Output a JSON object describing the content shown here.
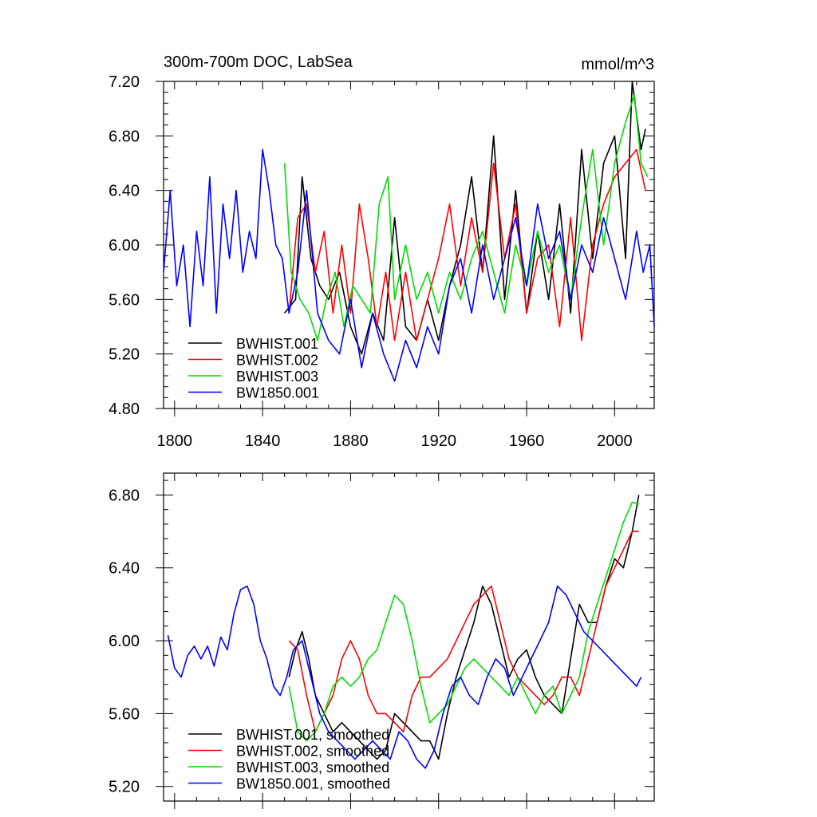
{
  "colors": {
    "BWHIST.001": "#000000",
    "BWHIST.002": "#ff0000",
    "BWHIST.003": "#00dd00",
    "BW1850.001": "#0000ff"
  },
  "chart_data": [
    {
      "type": "line",
      "title": "300m-700m DOC, LabSea",
      "units": "mmol/m^3",
      "xlim": [
        1795,
        2018
      ],
      "ylim": [
        4.8,
        7.2
      ],
      "xticks": [
        1800,
        1840,
        1880,
        1920,
        1960,
        2000
      ],
      "xtick_labels": [
        "1800",
        "1840",
        "1880",
        "1920",
        "1960",
        "2000"
      ],
      "yticks": [
        4.8,
        5.2,
        5.6,
        6.0,
        6.4,
        6.8,
        7.2
      ],
      "ytick_labels": [
        "4.80",
        "5.20",
        "5.60",
        "6.00",
        "6.40",
        "6.80",
        "7.20"
      ],
      "legend_position": "bottom-left",
      "series": [
        {
          "name": "BWHIST.001",
          "color": "#000000",
          "x": [
            1850,
            1855,
            1858,
            1862,
            1866,
            1870,
            1875,
            1880,
            1885,
            1890,
            1895,
            1900,
            1905,
            1910,
            1915,
            1920,
            1925,
            1930,
            1935,
            1940,
            1945,
            1950,
            1955,
            1960,
            1965,
            1970,
            1975,
            1980,
            1985,
            1990,
            1995,
            2000,
            2005,
            2008,
            2012,
            2014
          ],
          "y": [
            5.5,
            5.6,
            6.5,
            5.9,
            5.7,
            5.6,
            5.8,
            5.4,
            5.2,
            5.5,
            5.3,
            6.2,
            5.4,
            5.3,
            5.6,
            5.3,
            5.7,
            6.0,
            6.5,
            5.8,
            6.8,
            5.6,
            6.4,
            5.5,
            6.1,
            5.6,
            6.3,
            5.5,
            6.7,
            5.9,
            6.6,
            6.8,
            5.9,
            7.2,
            6.7,
            6.85
          ]
        },
        {
          "name": "BWHIST.002",
          "color": "#ff0000",
          "x": [
            1852,
            1856,
            1860,
            1864,
            1868,
            1872,
            1876,
            1880,
            1884,
            1888,
            1892,
            1896,
            1900,
            1905,
            1910,
            1915,
            1920,
            1925,
            1930,
            1935,
            1940,
            1945,
            1950,
            1955,
            1960,
            1965,
            1970,
            1975,
            1980,
            1985,
            1990,
            1995,
            2000,
            2005,
            2010,
            2014
          ],
          "y": [
            5.5,
            6.2,
            6.3,
            5.8,
            6.1,
            5.5,
            6.0,
            5.5,
            6.3,
            5.9,
            5.4,
            5.8,
            5.3,
            5.8,
            5.3,
            5.6,
            5.9,
            6.3,
            5.7,
            6.2,
            5.8,
            6.6,
            5.9,
            6.3,
            5.5,
            5.9,
            6.0,
            5.4,
            6.2,
            5.3,
            6.0,
            6.3,
            6.5,
            6.6,
            6.7,
            6.4
          ]
        },
        {
          "name": "BWHIST.003",
          "color": "#00dd00",
          "x": [
            1850,
            1853,
            1857,
            1861,
            1865,
            1869,
            1873,
            1877,
            1881,
            1885,
            1889,
            1893,
            1897,
            1900,
            1905,
            1910,
            1915,
            1920,
            1925,
            1930,
            1935,
            1940,
            1945,
            1950,
            1955,
            1960,
            1965,
            1970,
            1975,
            1980,
            1985,
            1990,
            1995,
            2000,
            2005,
            2009,
            2012,
            2015
          ],
          "y": [
            6.6,
            5.8,
            5.6,
            5.5,
            5.3,
            5.6,
            5.8,
            5.4,
            5.7,
            5.6,
            5.5,
            6.3,
            6.5,
            5.6,
            6.0,
            5.6,
            5.8,
            5.5,
            5.8,
            5.6,
            5.9,
            6.1,
            5.8,
            5.5,
            6.0,
            5.7,
            6.1,
            5.8,
            6.0,
            5.6,
            6.2,
            6.7,
            6.0,
            6.6,
            6.9,
            7.1,
            6.6,
            6.5
          ]
        },
        {
          "name": "BW1850.001",
          "color": "#0000ff",
          "x": [
            1795,
            1798,
            1801,
            1804,
            1807,
            1810,
            1813,
            1816,
            1819,
            1822,
            1825,
            1828,
            1831,
            1834,
            1837,
            1840,
            1843,
            1846,
            1849,
            1852,
            1856,
            1860,
            1865,
            1870,
            1875,
            1880,
            1885,
            1890,
            1895,
            1900,
            1905,
            1910,
            1915,
            1920,
            1925,
            1930,
            1935,
            1940,
            1945,
            1950,
            1955,
            1960,
            1965,
            1970,
            1975,
            1980,
            1985,
            1990,
            1995,
            2000,
            2005,
            2010,
            2013,
            2016,
            2018
          ],
          "y": [
            5.8,
            6.4,
            5.7,
            6.0,
            5.4,
            6.1,
            5.7,
            6.5,
            5.5,
            6.3,
            5.9,
            6.4,
            5.8,
            6.1,
            5.9,
            6.7,
            6.4,
            6.0,
            5.9,
            5.5,
            5.8,
            6.4,
            5.5,
            5.3,
            5.2,
            5.6,
            5.1,
            5.5,
            5.2,
            5.0,
            5.3,
            5.1,
            5.4,
            5.2,
            5.7,
            5.9,
            5.5,
            6.0,
            5.6,
            5.9,
            6.2,
            5.7,
            6.3,
            5.9,
            6.1,
            5.6,
            6.0,
            5.8,
            6.2,
            5.9,
            5.6,
            6.1,
            5.8,
            6.0,
            5.4
          ]
        }
      ]
    },
    {
      "type": "line",
      "title": "",
      "xlim": [
        1795,
        2018
      ],
      "ylim": [
        5.12,
        6.92
      ],
      "xticks": [
        1800,
        1840,
        1880,
        1920,
        1960,
        2000
      ],
      "yticks": [
        5.2,
        5.6,
        6.0,
        6.4,
        6.8
      ],
      "ytick_labels": [
        "5.20",
        "5.60",
        "6.00",
        "6.40",
        "6.80"
      ],
      "legend_position": "bottom-left",
      "series": [
        {
          "name": "BWHIST.001, smoothed",
          "color": "#000000",
          "x": [
            1852,
            1855,
            1858,
            1861,
            1864,
            1868,
            1872,
            1876,
            1880,
            1884,
            1888,
            1892,
            1896,
            1900,
            1904,
            1908,
            1912,
            1916,
            1920,
            1924,
            1928,
            1932,
            1936,
            1940,
            1944,
            1948,
            1952,
            1956,
            1960,
            1964,
            1968,
            1972,
            1976,
            1980,
            1984,
            1988,
            1992,
            1996,
            2000,
            2004,
            2008,
            2011
          ],
          "y": [
            5.8,
            5.95,
            6.05,
            5.9,
            5.7,
            5.6,
            5.5,
            5.55,
            5.5,
            5.45,
            5.4,
            5.35,
            5.4,
            5.6,
            5.55,
            5.5,
            5.45,
            5.45,
            5.35,
            5.6,
            5.8,
            5.95,
            6.1,
            6.3,
            6.2,
            6.0,
            5.8,
            5.9,
            5.95,
            5.8,
            5.7,
            5.65,
            5.6,
            5.9,
            6.2,
            6.1,
            6.1,
            6.3,
            6.45,
            6.4,
            6.6,
            6.8
          ]
        },
        {
          "name": "BWHIST.002, smoothed",
          "color": "#ff0000",
          "x": [
            1852,
            1856,
            1860,
            1864,
            1868,
            1872,
            1876,
            1880,
            1884,
            1888,
            1892,
            1896,
            1900,
            1904,
            1908,
            1912,
            1916,
            1920,
            1924,
            1928,
            1932,
            1936,
            1940,
            1944,
            1948,
            1952,
            1956,
            1960,
            1964,
            1968,
            1972,
            1976,
            1980,
            1984,
            1988,
            1992,
            1996,
            2000,
            2004,
            2008,
            2011
          ],
          "y": [
            6.0,
            5.95,
            5.7,
            5.5,
            5.6,
            5.7,
            5.9,
            6.0,
            5.9,
            5.7,
            5.6,
            5.6,
            5.55,
            5.5,
            5.7,
            5.8,
            5.8,
            5.85,
            5.9,
            6.0,
            6.1,
            6.2,
            6.25,
            6.3,
            6.1,
            5.9,
            5.8,
            5.75,
            5.7,
            5.65,
            5.7,
            5.8,
            5.8,
            5.7,
            5.9,
            6.1,
            6.3,
            6.4,
            6.5,
            6.6,
            6.6
          ]
        },
        {
          "name": "BWHIST.003, smoothed",
          "color": "#00dd00",
          "x": [
            1852,
            1856,
            1860,
            1864,
            1868,
            1872,
            1876,
            1880,
            1884,
            1888,
            1892,
            1896,
            1900,
            1904,
            1908,
            1912,
            1916,
            1920,
            1924,
            1928,
            1932,
            1936,
            1940,
            1944,
            1948,
            1952,
            1956,
            1960,
            1964,
            1968,
            1972,
            1976,
            1980,
            1984,
            1988,
            1992,
            1996,
            2000,
            2004,
            2008,
            2011
          ],
          "y": [
            5.75,
            5.5,
            5.45,
            5.5,
            5.6,
            5.75,
            5.8,
            5.75,
            5.8,
            5.9,
            5.95,
            6.1,
            6.25,
            6.2,
            6.0,
            5.75,
            5.55,
            5.6,
            5.65,
            5.75,
            5.85,
            5.9,
            5.85,
            5.8,
            5.75,
            5.7,
            5.8,
            5.7,
            5.6,
            5.7,
            5.75,
            5.6,
            5.7,
            5.8,
            6.05,
            6.2,
            6.35,
            6.5,
            6.65,
            6.76,
            6.75
          ]
        },
        {
          "name": "BW1850.001, smoothed",
          "color": "#0000ff",
          "x": [
            1797,
            1800,
            1803,
            1806,
            1809,
            1812,
            1815,
            1818,
            1821,
            1824,
            1827,
            1830,
            1833,
            1836,
            1839,
            1842,
            1845,
            1848,
            1851,
            1854,
            1858,
            1862,
            1866,
            1870,
            1874,
            1878,
            1882,
            1886,
            1890,
            1894,
            1898,
            1902,
            1906,
            1910,
            1914,
            1918,
            1922,
            1926,
            1930,
            1934,
            1938,
            1942,
            1946,
            1950,
            1954,
            1958,
            1962,
            1966,
            1970,
            1974,
            1978,
            1982,
            1986,
            1990,
            1994,
            1998,
            2002,
            2006,
            2010,
            2012
          ],
          "y": [
            6.03,
            5.85,
            5.8,
            5.92,
            5.97,
            5.9,
            5.97,
            5.86,
            6.02,
            5.95,
            6.15,
            6.28,
            6.3,
            6.2,
            6.0,
            5.9,
            5.75,
            5.7,
            5.8,
            5.95,
            6.0,
            5.8,
            5.6,
            5.5,
            5.45,
            5.4,
            5.35,
            5.4,
            5.45,
            5.4,
            5.35,
            5.5,
            5.45,
            5.35,
            5.3,
            5.4,
            5.6,
            5.75,
            5.8,
            5.7,
            5.65,
            5.8,
            5.9,
            5.85,
            5.7,
            5.8,
            5.9,
            6.0,
            6.1,
            6.3,
            6.25,
            6.15,
            6.05,
            6.0,
            5.95,
            5.9,
            5.85,
            5.8,
            5.75,
            5.8
          ]
        }
      ]
    }
  ]
}
